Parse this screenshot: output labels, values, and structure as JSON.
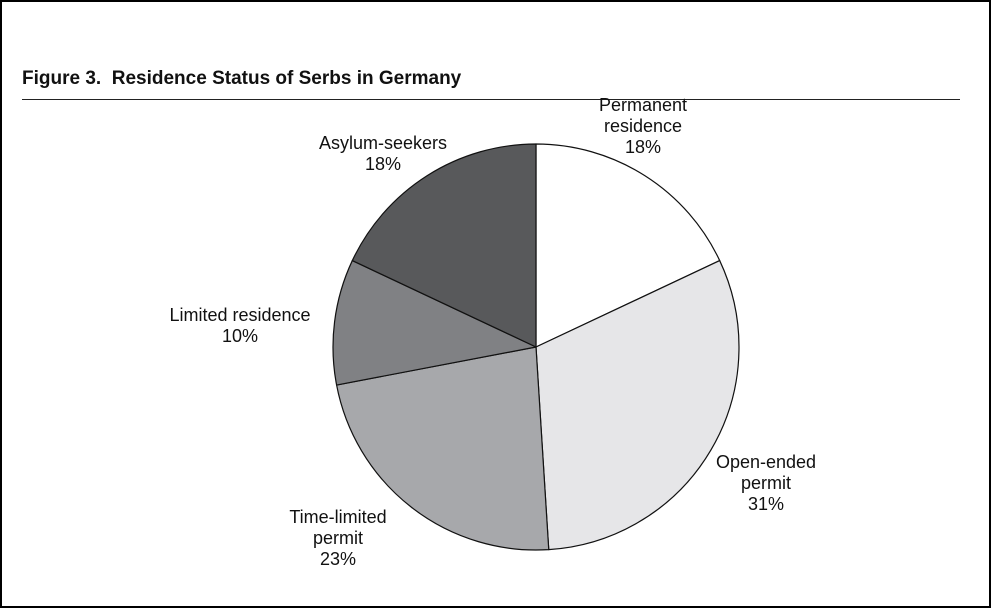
{
  "chart_data": {
    "type": "pie",
    "title": "Figure 3.  Residence Status of Serbs in Germany",
    "categories": [
      "Permanent residence",
      "Open-ended permit",
      "Time-limited permit",
      "Limited residence",
      "Asylum-seekers"
    ],
    "values": [
      18,
      31,
      23,
      10,
      18
    ],
    "value_labels": [
      "18%",
      "31%",
      "23%",
      "10%",
      "18%"
    ],
    "colors": [
      "#ffffff",
      "#e6e6e8",
      "#a7a8ab",
      "#808184",
      "#58595b"
    ]
  }
}
